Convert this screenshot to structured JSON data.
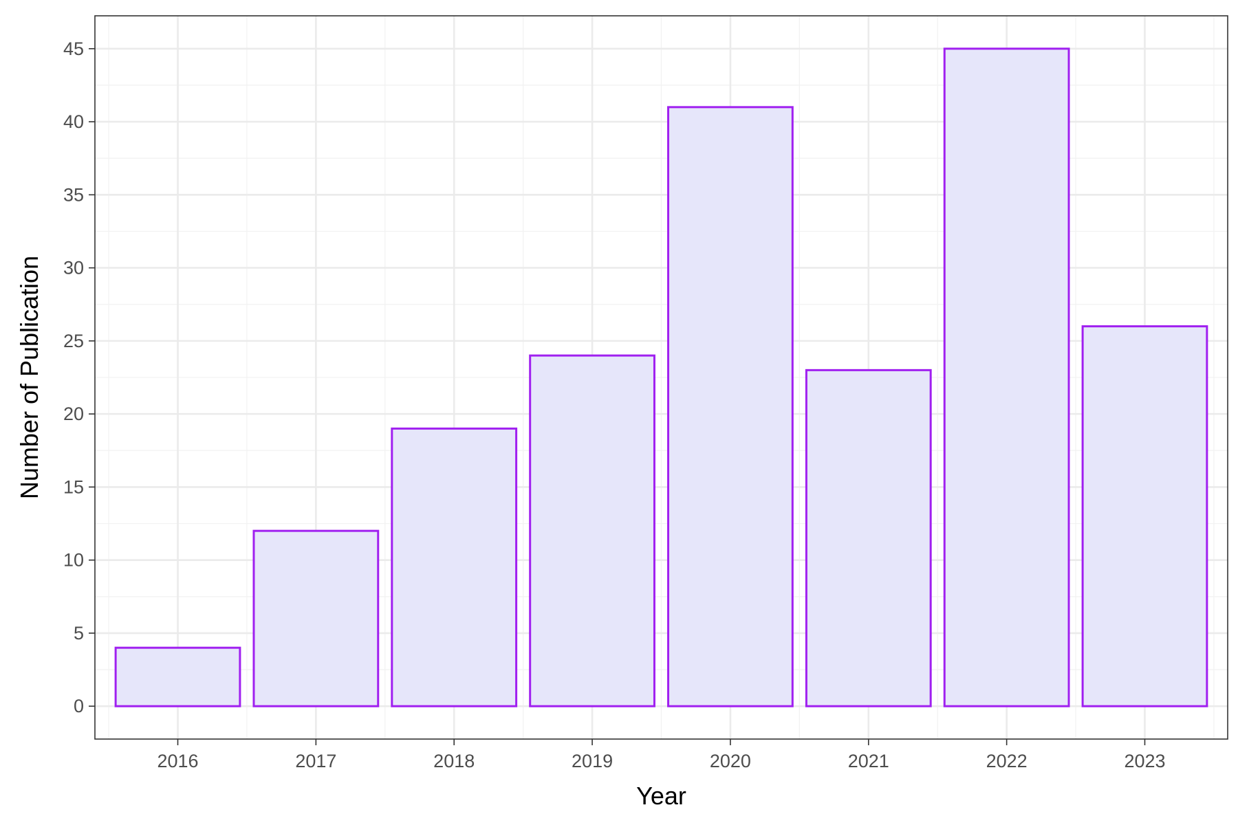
{
  "chart_data": {
    "type": "bar",
    "title": "",
    "xlabel": "Year",
    "ylabel": "Number of Publication",
    "categories": [
      "2016",
      "2017",
      "2018",
      "2019",
      "2020",
      "2021",
      "2022",
      "2023"
    ],
    "values": [
      4,
      12,
      19,
      24,
      41,
      23,
      45,
      26
    ],
    "ylim": [
      -2.25,
      47.25
    ],
    "yticks": [
      0,
      5,
      10,
      15,
      20,
      25,
      30,
      35,
      40,
      45
    ],
    "ytick_labels": [
      "0",
      "5",
      "10",
      "15",
      "20",
      "25",
      "30",
      "35",
      "40",
      "45"
    ],
    "grid": true,
    "legend": "none",
    "colors": {
      "bar_fill": "#e6e6fa",
      "bar_outline": "#a020f0",
      "grid_major": "#ebebeb",
      "grid_minor": "#f2f2f2",
      "panel_border": "#333333"
    }
  }
}
